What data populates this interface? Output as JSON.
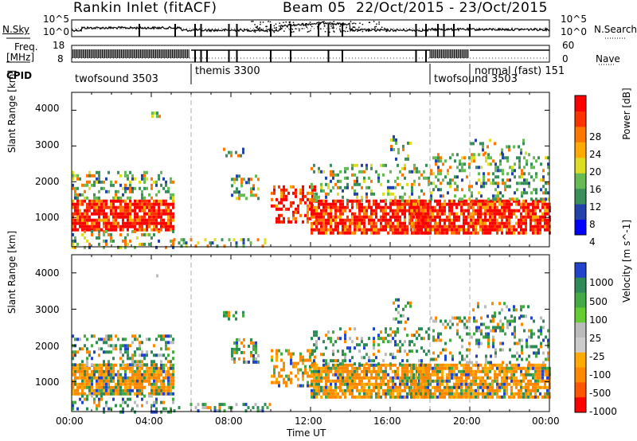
{
  "header": {
    "station": "Rankin Inlet (fitACF)",
    "beam": "Beam 05",
    "date_range": "22/Oct/2015 - 23/Oct/2015"
  },
  "top_panels": {
    "nsky_label": "N.Sky",
    "nsky_ticks": [
      "10^5",
      "10^0"
    ],
    "nsearch_label": "N.Search",
    "nsearch_ticks": [
      "10^5",
      "10^0"
    ],
    "freq_label_1": "Freq.",
    "freq_label_2": "[MHz]",
    "freq_ticks": [
      "18",
      "8"
    ],
    "nave_label": "Nave",
    "nave_ticks": [
      "60",
      "0"
    ],
    "cpid_label": "CPID",
    "cpid_segments": [
      {
        "label": "twofsound 3503",
        "start": 0.0,
        "end": 6.0
      },
      {
        "label": "themis 3300",
        "start": 6.0,
        "end": 18.0
      },
      {
        "label": "twofsound 3503",
        "start": 18.0,
        "end": 20.0
      },
      {
        "label": "normal (fast) 151",
        "start": 20.0,
        "end": 24.0
      }
    ]
  },
  "colors": {
    "power_scale": [
      "#0000ff",
      "#2244aa",
      "#3a8f5a",
      "#66bb55",
      "#dddd22",
      "#ffaa00",
      "#ff7700",
      "#ff3300",
      "#ff0000"
    ],
    "velocity_scale": [
      "#2244cc",
      "#2e8b57",
      "#44aa44",
      "#66cc33",
      "#bbbbbb",
      "#cccccc",
      "#ffaa00",
      "#ff8800",
      "#ff5500",
      "#ff0000"
    ]
  },
  "chart_data": [
    {
      "type": "heatmap",
      "title": "Power",
      "ylabel": "Slant Range [km]",
      "colorbar_label": "Power [dB]",
      "colorbar_ticks": [
        "28",
        "24",
        "20",
        "16",
        "12",
        "8",
        "4"
      ],
      "y_ticks": [
        "4000",
        "3000",
        "2000",
        "1000"
      ],
      "ylim": [
        180,
        4500
      ],
      "xlim": [
        0,
        24
      ],
      "bands": [
        {
          "x": [
            0.0,
            5.0
          ],
          "y": [
            500,
            1800
          ],
          "level": "high"
        },
        {
          "x": [
            5.0,
            6.0
          ],
          "y": [
            200,
            500
          ],
          "level": "medium"
        },
        {
          "x": [
            8.0,
            9.5
          ],
          "y": [
            1500,
            2100
          ],
          "level": "medium"
        },
        {
          "x": [
            9.5,
            12.5
          ],
          "y": [
            300,
            1500
          ],
          "level": "medium"
        },
        {
          "x": [
            12.5,
            18.0
          ],
          "y": [
            500,
            1500
          ],
          "level": "high"
        },
        {
          "x": [
            18.0,
            24.0
          ],
          "y": [
            500,
            1500
          ],
          "level": "high"
        }
      ]
    },
    {
      "type": "heatmap",
      "title": "Velocity",
      "xlabel": "Time UT",
      "ylabel": "Slant Range [km]",
      "colorbar_label": "Velocity [m s^-1]",
      "colorbar_ticks": [
        "1000",
        "500",
        "100",
        "25",
        "-25",
        "-100",
        "-500",
        "-1000"
      ],
      "x_ticks": [
        "00:00",
        "04:00",
        "08:00",
        "12:00",
        "16:00",
        "20:00",
        "00:00"
      ],
      "y_ticks": [
        "4000",
        "3000",
        "2000",
        "1000"
      ],
      "ylim": [
        180,
        4500
      ],
      "xlim": [
        0,
        24
      ]
    }
  ]
}
